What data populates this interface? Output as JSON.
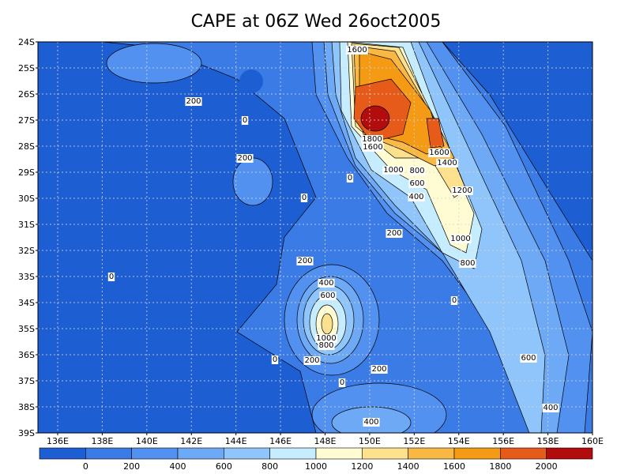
{
  "title": "CAPE at 06Z Wed 26oct2005",
  "y_axis": {
    "labels": [
      "24S",
      "25S",
      "26S",
      "27S",
      "28S",
      "29S",
      "30S",
      "31S",
      "32S",
      "33S",
      "34S",
      "35S",
      "36S",
      "37S",
      "38S",
      "39S"
    ]
  },
  "x_axis": {
    "labels": [
      "136E",
      "138E",
      "140E",
      "142E",
      "144E",
      "146E",
      "148E",
      "150E",
      "152E",
      "154E",
      "156E",
      "158E",
      "160E"
    ]
  },
  "colorbar": {
    "colors": [
      "#1d5fd3",
      "#3a7be6",
      "#5291f0",
      "#6ea9f6",
      "#8fc5fb",
      "#c6ecff",
      "#fffbd2",
      "#fde18c",
      "#f9b844",
      "#f49a14",
      "#e65a1a",
      "#b30c0c"
    ],
    "labels": [
      "0",
      "200",
      "400",
      "600",
      "800",
      "1000",
      "1200",
      "1400",
      "1600",
      "1800",
      "2000"
    ]
  },
  "contour_labels": [
    "1600",
    "200",
    "0",
    "200",
    "1800",
    "1600",
    "1600",
    "1400",
    "1000",
    "800",
    "600",
    "400",
    "0",
    "0",
    "1200",
    "200",
    "1000",
    "800",
    "200",
    "400",
    "600",
    "0",
    "0",
    "1000",
    "800",
    "0",
    "200",
    "600",
    "200",
    "0",
    "400",
    "400"
  ]
}
